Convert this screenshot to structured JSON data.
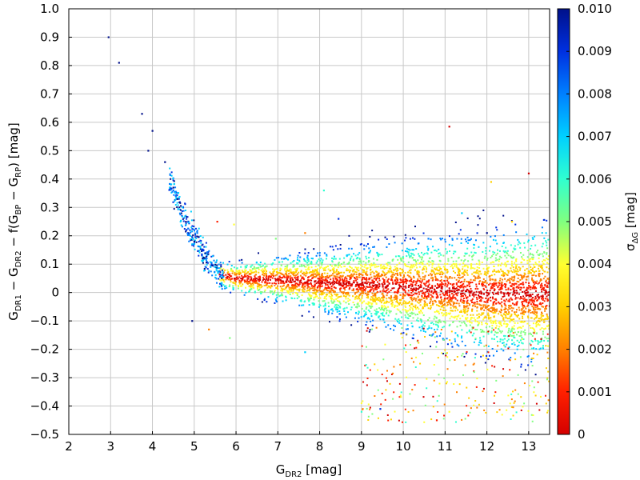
{
  "chart_data": {
    "type": "scatter",
    "xlim": [
      2,
      13.5
    ],
    "ylim": [
      -0.5,
      1.0
    ],
    "x_ticks": [
      "2",
      "3",
      "4",
      "5",
      "6",
      "7",
      "8",
      "9",
      "10",
      "11",
      "12",
      "13"
    ],
    "y_ticks": [
      "−0.5",
      "−0.4",
      "−0.3",
      "−0.2",
      "−0.1",
      "0",
      "0.1",
      "0.2",
      "0.3",
      "0.4",
      "0.5",
      "0.6",
      "0.7",
      "0.8",
      "0.9",
      "1.0"
    ],
    "xlabel": {
      "main": "G",
      "sub": "DR2",
      "unit": " [mag]"
    },
    "ylabel": {
      "p1": "G",
      "s1": "DR1",
      "p2": " − G",
      "s2": "DR2",
      "p3": " − f(G",
      "s3": "BP",
      "p4": " − G",
      "s4": "RP",
      "p5": ") [mag]"
    },
    "colorbar": {
      "label_main": "σ",
      "label_sub": "ΔG",
      "label_unit": " [mag]",
      "range": [
        0,
        0.01
      ],
      "ticks": [
        "0",
        "0.001",
        "0.002",
        "0.003",
        "0.004",
        "0.005",
        "0.006",
        "0.007",
        "0.008",
        "0.009",
        "0.010"
      ],
      "colormap": [
        "#d40000",
        "#ff2000",
        "#ff8000",
        "#ffd000",
        "#ffff30",
        "#80ff80",
        "#30ffd0",
        "#00d0ff",
        "#0080ff",
        "#0030e0",
        "#00108a"
      ]
    },
    "grid": true,
    "trend_points": [
      [
        5.5,
        0.07
      ],
      [
        6,
        0.05
      ],
      [
        7,
        0.045
      ],
      [
        8,
        0.035
      ],
      [
        9,
        0.03
      ],
      [
        10,
        0.02
      ],
      [
        11,
        0.01
      ],
      [
        12,
        -0.005
      ],
      [
        13,
        -0.005
      ],
      [
        13.5,
        -0.005
      ]
    ],
    "bright_points": [
      [
        2.95,
        0.9
      ],
      [
        3.2,
        0.81
      ],
      [
        3.75,
        0.63
      ],
      [
        3.9,
        0.5
      ],
      [
        4.0,
        0.57
      ],
      [
        4.3,
        0.46
      ],
      [
        4.5,
        0.37
      ],
      [
        4.6,
        0.33
      ],
      [
        4.8,
        0.25
      ],
      [
        5.0,
        0.18
      ],
      [
        5.2,
        0.12
      ]
    ],
    "outliers": [
      [
        11.1,
        0.585
      ],
      [
        12.1,
        0.39
      ],
      [
        8.1,
        0.36
      ],
      [
        8.45,
        0.26
      ],
      [
        5.55,
        0.25
      ],
      [
        5.95,
        0.24
      ],
      [
        11.4,
        0.28
      ],
      [
        12.0,
        0.21
      ],
      [
        7.65,
        0.21
      ],
      [
        6.95,
        0.19
      ],
      [
        10.6,
        0.19
      ],
      [
        13.0,
        0.42
      ],
      [
        12.6,
        0.25
      ],
      [
        9.0,
        -0.42
      ],
      [
        9.45,
        -0.41
      ],
      [
        10.8,
        -0.45
      ],
      [
        11.1,
        -0.42
      ],
      [
        7.65,
        -0.21
      ],
      [
        4.95,
        -0.1
      ],
      [
        5.35,
        -0.13
      ],
      [
        5.85,
        -0.16
      ]
    ]
  }
}
